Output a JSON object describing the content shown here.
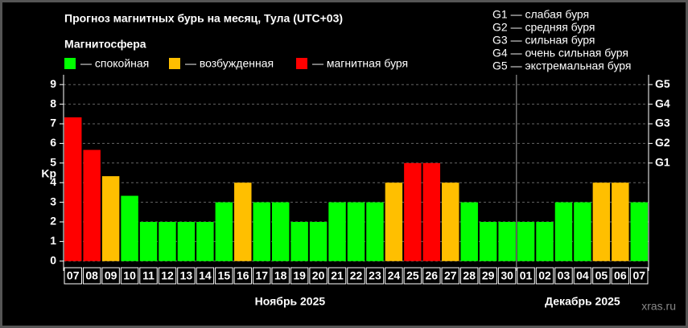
{
  "chart_data": {
    "type": "bar",
    "title": "Прогноз магнитных бурь на месяц, Тула (UTC+03)",
    "legend_title": "Магнитосфера",
    "legend": [
      {
        "label": "— спокойная",
        "color": "#00ff00"
      },
      {
        "label": "— возбужденная",
        "color": "#ffbf00"
      },
      {
        "label": "— магнитная буря",
        "color": "#ff0000"
      }
    ],
    "storm_levels": [
      "G1 — слабая буря",
      "G2 — средняя буря",
      "G3 — сильная буря",
      "G4 — очень сильная буря",
      "G5 — экстремальная буря"
    ],
    "y_label": "Kp",
    "watermark": "xras.ru",
    "months": [
      "Ноябрь 2025",
      "Декабрь 2025"
    ],
    "categories": [
      "07",
      "08",
      "09",
      "10",
      "11",
      "12",
      "13",
      "14",
      "15",
      "16",
      "17",
      "18",
      "19",
      "20",
      "21",
      "22",
      "23",
      "24",
      "25",
      "26",
      "27",
      "28",
      "29",
      "30",
      "01",
      "02",
      "03",
      "04",
      "05",
      "06",
      "07"
    ],
    "values": [
      7.33,
      5.67,
      4.33,
      3.33,
      2,
      2,
      2,
      2,
      3,
      4,
      3,
      3,
      2,
      2,
      3,
      3,
      3,
      4,
      5,
      5,
      4,
      3,
      2,
      2,
      2,
      2,
      3,
      3,
      4,
      4,
      3
    ],
    "colors": [
      "#ff0000",
      "#ff0000",
      "#ffbf00",
      "#00ff00",
      "#00ff00",
      "#00ff00",
      "#00ff00",
      "#00ff00",
      "#00ff00",
      "#ffbf00",
      "#00ff00",
      "#00ff00",
      "#00ff00",
      "#00ff00",
      "#00ff00",
      "#00ff00",
      "#00ff00",
      "#ffbf00",
      "#ff0000",
      "#ff0000",
      "#ffbf00",
      "#00ff00",
      "#00ff00",
      "#00ff00",
      "#00ff00",
      "#00ff00",
      "#00ff00",
      "#00ff00",
      "#ffbf00",
      "#ffbf00",
      "#00ff00"
    ],
    "ylim": [
      -0.5,
      9.5
    ],
    "yticks": [
      0,
      1,
      2,
      3,
      4,
      5,
      6,
      7,
      8,
      9
    ],
    "y2lim": [
      -0.5,
      9.5
    ],
    "y2ticks": [
      {
        "value": 5,
        "label": "G1"
      },
      {
        "value": 6,
        "label": "G2"
      },
      {
        "value": 7,
        "label": "G3"
      },
      {
        "value": 8,
        "label": "G4"
      },
      {
        "value": 9,
        "label": "G5"
      }
    ],
    "grid": true
  }
}
